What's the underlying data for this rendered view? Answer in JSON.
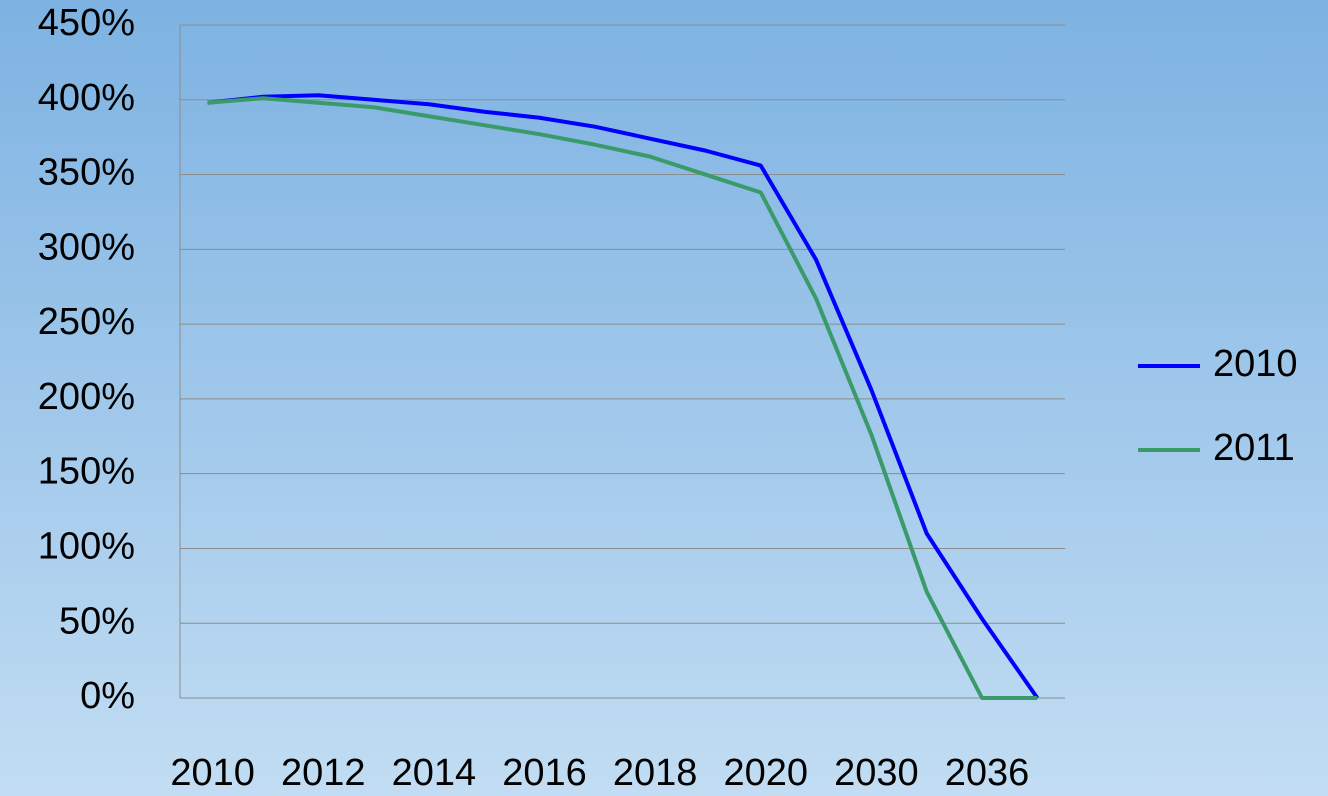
{
  "chart_data": {
    "type": "line",
    "categories": [
      "2010",
      null,
      "2012",
      null,
      "2014",
      null,
      "2016",
      null,
      "2018",
      null,
      "2020",
      null,
      "2030",
      null,
      "2036",
      null
    ],
    "series": [
      {
        "name": "2010",
        "color": "#0000ff",
        "values": [
          398,
          402,
          403,
          400,
          397,
          392,
          388,
          382,
          374,
          366,
          356,
          293,
          206,
          110,
          53,
          0
        ]
      },
      {
        "name": "2011",
        "color": "#3a9a6a",
        "values": [
          398,
          401,
          398,
          395,
          389,
          383,
          377,
          370,
          362,
          350,
          338,
          267,
          176,
          71,
          0,
          0
        ]
      }
    ],
    "ylim": [
      0,
      450
    ],
    "yticks": [
      {
        "value": 0,
        "label": "0%"
      },
      {
        "value": 50,
        "label": "50%"
      },
      {
        "value": 100,
        "label": "100%"
      },
      {
        "value": 150,
        "label": "150%"
      },
      {
        "value": 200,
        "label": "200%"
      },
      {
        "value": 250,
        "label": "250%"
      },
      {
        "value": 300,
        "label": "300%"
      },
      {
        "value": 350,
        "label": "350%"
      },
      {
        "value": 400,
        "label": "400%"
      },
      {
        "value": 450,
        "label": "450%"
      }
    ],
    "grid": true,
    "legend": "right"
  }
}
